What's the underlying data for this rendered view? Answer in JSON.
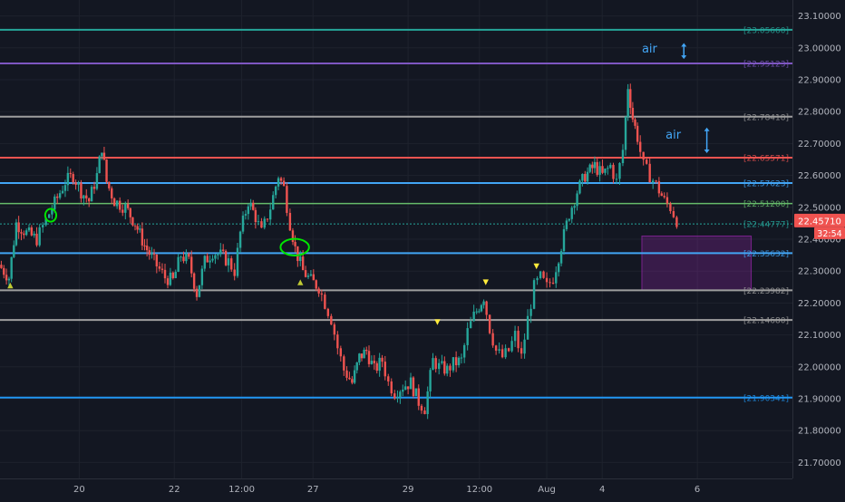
{
  "chart_data": {
    "type": "candlestick",
    "title": "",
    "xlabel": "",
    "ylabel": "",
    "ylim": [
      21.65,
      23.15
    ],
    "y_ticks": [
      21.7,
      21.8,
      21.9,
      22.0,
      22.1,
      22.2,
      22.3,
      22.4,
      22.5,
      22.6,
      22.7,
      22.8,
      22.9,
      23.0,
      23.1
    ],
    "y_tick_labels": [
      "21.70000",
      "21.80000",
      "21.90000",
      "22.00000",
      "22.10000",
      "22.20000",
      "22.30000",
      "22.40000",
      "22.50000",
      "22.60000",
      "22.70000",
      "22.80000",
      "22.90000",
      "23.00000",
      "23.10000"
    ],
    "x_range": [
      0,
      100
    ],
    "x_ticks": [
      {
        "label": "20",
        "x": 10.0
      },
      {
        "label": "22",
        "x": 22.0
      },
      {
        "label": "12:00",
        "x": 30.5
      },
      {
        "label": "27",
        "x": 39.5
      },
      {
        "label": "29",
        "x": 51.5
      },
      {
        "label": "12:00",
        "x": 60.5
      },
      {
        "label": "Aug",
        "x": 69.0
      },
      {
        "label": "4",
        "x": 76.0
      },
      {
        "label": "6",
        "x": 88.0
      }
    ],
    "grid": true,
    "current_price": {
      "value": 22.4571,
      "label": "22.45710",
      "countdown": "32:54"
    },
    "levels": [
      {
        "value": 23.0566,
        "label": "23.05660",
        "color": "#26a69a",
        "width": 2
      },
      {
        "value": 22.95123,
        "label": "22.95123",
        "color": "#7e57c2",
        "width": 2
      },
      {
        "value": 22.78418,
        "label": "22.78418",
        "color": "#9e9e9e",
        "width": 2
      },
      {
        "value": 22.65571,
        "label": "22.65571",
        "color": "#ef5350",
        "width": 2
      },
      {
        "value": 22.57623,
        "label": "22.57623",
        "color": "#42a5f5",
        "width": 2
      },
      {
        "value": 22.512,
        "label": "22.51200",
        "color": "#66bb6a",
        "width": 1.5
      },
      {
        "value": 22.44777,
        "label": "22.44777",
        "color": "#26a69a",
        "width": 1,
        "dashed": true
      },
      {
        "value": 22.35632,
        "label": "22.35632",
        "color": "#42a5f5",
        "width": 2
      },
      {
        "value": 22.23982,
        "label": "22.23982",
        "color": "#9e9e9e",
        "width": 2
      },
      {
        "value": 22.1468,
        "label": "22.14680",
        "color": "#9e9e9e",
        "width": 2
      },
      {
        "value": 21.90341,
        "label": "21.90341",
        "color": "#2196f3",
        "width": 2
      }
    ],
    "zone": {
      "x_start": 81.0,
      "x_end": 94.8,
      "y_top": 22.41,
      "y_bottom": 22.24,
      "color": "#9c27b0"
    },
    "annotations": [
      {
        "text": "air",
        "x": 81.0,
        "y": 23.0
      },
      {
        "text": "air",
        "x": 84.0,
        "y": 22.73
      }
    ],
    "arrows": [
      {
        "x": 86.3,
        "y_top": 23.015,
        "y_bottom": 22.965
      },
      {
        "x": 89.2,
        "y_top": 22.75,
        "y_bottom": 22.67
      }
    ],
    "circles": [
      {
        "x": 6.4,
        "y": 22.475,
        "rx": 0.7,
        "ry": 0.02
      },
      {
        "x": 37.2,
        "y": 22.375,
        "rx": 1.8,
        "ry": 0.026
      }
    ],
    "markers": [
      {
        "x": 1.3,
        "y": 22.255,
        "color": "#c0ca33",
        "dir": "up"
      },
      {
        "x": 37.9,
        "y": 22.265,
        "color": "#c0ca33",
        "dir": "up"
      },
      {
        "x": 55.2,
        "y": 22.14,
        "color": "#ffeb3b",
        "dir": "down"
      },
      {
        "x": 61.3,
        "y": 22.265,
        "color": "#ffeb3b",
        "dir": "down"
      },
      {
        "x": 67.7,
        "y": 22.315,
        "color": "#ffeb3b",
        "dir": "down"
      }
    ],
    "price_path": [
      [
        0.0,
        22.32
      ],
      [
        1.3,
        22.28
      ],
      [
        2.2,
        22.45
      ],
      [
        3.5,
        22.42
      ],
      [
        4.8,
        22.4
      ],
      [
        5.6,
        22.44
      ],
      [
        6.4,
        22.48
      ],
      [
        7.4,
        22.53
      ],
      [
        8.4,
        22.58
      ],
      [
        9.4,
        22.6
      ],
      [
        10.4,
        22.55
      ],
      [
        11.4,
        22.52
      ],
      [
        12.4,
        22.6
      ],
      [
        13.0,
        22.69
      ],
      [
        13.6,
        22.58
      ],
      [
        14.6,
        22.52
      ],
      [
        16.0,
        22.5
      ],
      [
        17.2,
        22.45
      ],
      [
        18.4,
        22.38
      ],
      [
        19.6,
        22.33
      ],
      [
        21.0,
        22.28
      ],
      [
        22.0,
        22.27
      ],
      [
        23.0,
        22.35
      ],
      [
        24.0,
        22.33
      ],
      [
        25.0,
        22.23
      ],
      [
        26.0,
        22.33
      ],
      [
        27.0,
        22.36
      ],
      [
        28.0,
        22.35
      ],
      [
        29.0,
        22.33
      ],
      [
        29.8,
        22.3
      ],
      [
        30.5,
        22.42
      ],
      [
        31.5,
        22.52
      ],
      [
        32.4,
        22.47
      ],
      [
        33.2,
        22.42
      ],
      [
        34.3,
        22.5
      ],
      [
        35.3,
        22.6
      ],
      [
        36.0,
        22.56
      ],
      [
        36.8,
        22.45
      ],
      [
        37.4,
        22.37
      ],
      [
        38.4,
        22.3
      ],
      [
        39.4,
        22.27
      ],
      [
        40.4,
        22.25
      ],
      [
        41.2,
        22.2
      ],
      [
        42.0,
        22.15
      ],
      [
        42.8,
        22.06
      ],
      [
        43.6,
        21.99
      ],
      [
        44.6,
        21.95
      ],
      [
        45.5,
        22.03
      ],
      [
        46.4,
        22.05
      ],
      [
        47.4,
        21.99
      ],
      [
        48.4,
        22.02
      ],
      [
        49.2,
        21.95
      ],
      [
        50.0,
        21.92
      ],
      [
        51.0,
        21.94
      ],
      [
        52.0,
        21.95
      ],
      [
        53.0,
        21.89
      ],
      [
        53.8,
        21.87
      ],
      [
        54.8,
        22.02
      ],
      [
        55.6,
        22.0
      ],
      [
        56.6,
        21.99
      ],
      [
        57.4,
        22.01
      ],
      [
        58.4,
        22.02
      ],
      [
        59.2,
        22.11
      ],
      [
        60.0,
        22.16
      ],
      [
        61.2,
        22.22
      ],
      [
        62.0,
        22.12
      ],
      [
        62.8,
        22.05
      ],
      [
        63.6,
        22.03
      ],
      [
        64.4,
        22.05
      ],
      [
        65.2,
        22.1
      ],
      [
        66.0,
        22.03
      ],
      [
        66.8,
        22.15
      ],
      [
        67.6,
        22.25
      ],
      [
        68.4,
        22.28
      ],
      [
        69.2,
        22.25
      ],
      [
        70.0,
        22.28
      ],
      [
        71.0,
        22.38
      ],
      [
        72.0,
        22.48
      ],
      [
        73.0,
        22.55
      ],
      [
        74.0,
        22.6
      ],
      [
        75.2,
        22.63
      ],
      [
        76.2,
        22.6
      ],
      [
        77.2,
        22.63
      ],
      [
        78.0,
        22.58
      ],
      [
        78.8,
        22.68
      ],
      [
        79.4,
        22.88
      ],
      [
        80.0,
        22.78
      ],
      [
        80.6,
        22.72
      ],
      [
        81.4,
        22.63
      ],
      [
        82.2,
        22.6
      ],
      [
        83.0,
        22.57
      ],
      [
        84.0,
        22.52
      ],
      [
        84.8,
        22.5
      ],
      [
        85.6,
        22.46
      ]
    ]
  }
}
